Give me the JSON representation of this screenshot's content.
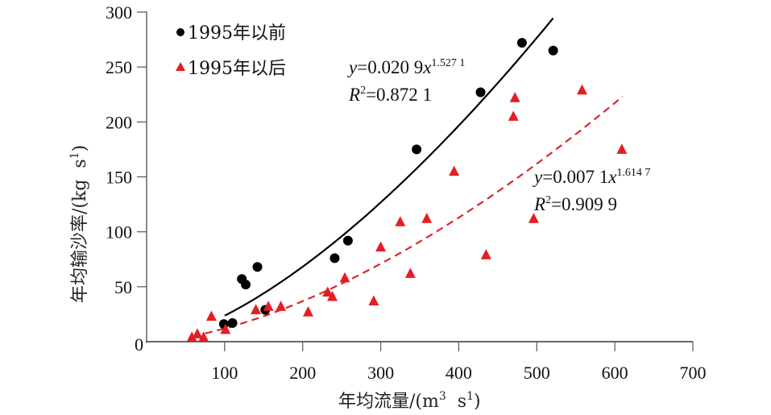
{
  "chart_data": {
    "type": "scatter",
    "title": "",
    "xlabel": "年均流量/(m",
    "xlabel_sup1": "3",
    "xlabel_mid": "  s",
    "xlabel_sup2": "1",
    "xlabel_end": ")",
    "ylabel": "年均输沙率/(kg  s",
    "ylabel_sup": "1",
    "ylabel_end": ")",
    "xlim": [
      0,
      700
    ],
    "ylim": [
      0,
      300
    ],
    "xticks": [
      100,
      200,
      300,
      400,
      500,
      600,
      700
    ],
    "xtick_labels": [
      "100",
      "200",
      "300",
      "400",
      "500",
      "600",
      "700"
    ],
    "yticks": [
      0,
      50,
      100,
      150,
      200,
      250,
      300
    ],
    "ytick_labels": [
      "0",
      "50",
      "100",
      "150",
      "200",
      "250",
      "300"
    ],
    "grid": false,
    "legend_position": "top-left",
    "series": [
      {
        "name": "1995年以前",
        "marker": "circle",
        "color": "#000000",
        "points": [
          [
            99,
            16
          ],
          [
            110,
            17
          ],
          [
            122,
            57
          ],
          [
            127,
            52
          ],
          [
            142,
            68
          ],
          [
            152,
            29
          ],
          [
            241,
            76
          ],
          [
            258,
            92
          ],
          [
            346,
            175
          ],
          [
            428,
            227
          ],
          [
            481,
            272
          ],
          [
            521,
            265
          ]
        ],
        "fit": {
          "type": "power",
          "a": 0.0209,
          "b": 1.5271,
          "x_range": [
            100,
            521
          ],
          "line_style": "solid",
          "equation_y": "y",
          "equation_main": "=0.020 9",
          "equation_x": "x",
          "equation_exp": "1.527 1",
          "r2_label": "R",
          "r2_sup": "2",
          "r2_value": "=0.872 1"
        }
      },
      {
        "name": "1995年以后",
        "marker": "triangle",
        "color": "#e31e24",
        "points": [
          [
            58,
            4
          ],
          [
            65,
            7
          ],
          [
            73,
            4
          ],
          [
            83,
            23
          ],
          [
            101,
            11
          ],
          [
            140,
            29
          ],
          [
            156,
            32
          ],
          [
            172,
            32
          ],
          [
            207,
            27
          ],
          [
            232,
            45
          ],
          [
            238,
            41
          ],
          [
            254,
            58
          ],
          [
            291,
            37
          ],
          [
            300,
            86
          ],
          [
            325,
            109
          ],
          [
            338,
            62
          ],
          [
            359,
            112
          ],
          [
            394,
            155
          ],
          [
            435,
            79
          ],
          [
            470,
            205
          ],
          [
            472,
            222
          ],
          [
            496,
            112
          ],
          [
            558,
            229
          ],
          [
            609,
            175
          ]
        ],
        "fit": {
          "type": "power",
          "a": 0.0071,
          "b": 1.6147,
          "x_range": [
            60,
            610
          ],
          "line_style": "dashed",
          "equation_y": "y",
          "equation_main": "=0.007 1",
          "equation_x": "x",
          "equation_exp": "1.614 7",
          "r2_label": "R",
          "r2_sup": "2",
          "r2_value": "=0.909 9"
        }
      }
    ]
  }
}
